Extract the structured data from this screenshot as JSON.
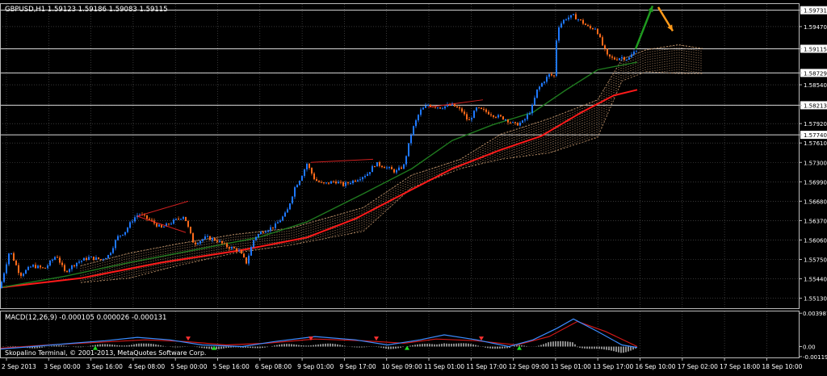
{
  "header": {
    "symbol_info": "GBPUSD,H1  1.59123 1.59186 1.59083 1.59115",
    "macd_info": "MACD(12,26,9) -0.000105 0.000026 -0.000131",
    "copyright": "Skopalino Terminal, © 2001-2013, MetaQuotes Software Corp."
  },
  "colors": {
    "background": "#000000",
    "grid": "#5a5a5a",
    "bull_candle": "#1e78ff",
    "bear_candle": "#ff6a1a",
    "ma_fast": "#1f7a1f",
    "ma_slow": "#ff1a1a",
    "cloud": "#c89a70",
    "macd_line": "#3c8cff",
    "signal_line": "#d01818",
    "histogram": "#c8c8c8",
    "text": "#ffffff"
  },
  "chart_data": [
    {
      "type": "candlestick",
      "title": "GBPUSD,H1",
      "ohlc_last": {
        "open": 1.59123,
        "high": 1.59186,
        "low": 1.59083,
        "close": 1.59115
      },
      "ylim": [
        1.5497,
        1.5983
      ],
      "y_ticks": [
        "1.59731",
        "1.59470",
        "1.59115",
        "1.58729",
        "1.58540",
        "1.58213",
        "1.57920",
        "1.57740",
        "1.57610",
        "1.57300",
        "1.56990",
        "1.56680",
        "1.56370",
        "1.56060",
        "1.55750",
        "1.55440",
        "1.55130"
      ],
      "y_tick_values": [
        1.59731,
        1.5947,
        1.59115,
        1.58729,
        1.5854,
        1.58213,
        1.5792,
        1.5774,
        1.5761,
        1.573,
        1.5699,
        1.5668,
        1.5637,
        1.5606,
        1.5575,
        1.5544,
        1.5513
      ],
      "highlighted_levels": [
        1.59731,
        1.59115,
        1.58729,
        1.58213,
        1.5774
      ],
      "x_ticks": [
        "2 Sep 2013",
        "3 Sep 00:00",
        "3 Sep 16:00",
        "4 Sep 08:00",
        "5 Sep 00:00",
        "5 Sep 16:00",
        "6 Sep 08:00",
        "9 Sep 01:00",
        "9 Sep 17:00",
        "10 Sep 09:00",
        "11 Sep 01:00",
        "11 Sep 17:00",
        "12 Sep 09:00",
        "13 Sep 01:00",
        "13 Sep 17:00",
        "16 Sep 10:00",
        "17 Sep 02:00",
        "17 Sep 18:00",
        "18 Sep 10:00"
      ],
      "price_path": [
        [
          0,
          1.5529
        ],
        [
          12,
          1.559
        ],
        [
          25,
          1.555
        ],
        [
          40,
          1.5565
        ],
        [
          55,
          1.556
        ],
        [
          70,
          1.5582
        ],
        [
          80,
          1.5555
        ],
        [
          95,
          1.557
        ],
        [
          110,
          1.5578
        ],
        [
          125,
          1.5575
        ],
        [
          135,
          1.5582
        ],
        [
          145,
          1.561
        ],
        [
          155,
          1.562
        ],
        [
          165,
          1.564
        ],
        [
          172,
          1.5648
        ],
        [
          185,
          1.5638
        ],
        [
          200,
          1.5625
        ],
        [
          215,
          1.5636
        ],
        [
          228,
          1.5645
        ],
        [
          235,
          1.5618
        ],
        [
          240,
          1.56
        ],
        [
          255,
          1.561
        ],
        [
          268,
          1.5606
        ],
        [
          280,
          1.5596
        ],
        [
          295,
          1.559
        ],
        [
          305,
          1.557
        ],
        [
          315,
          1.561
        ],
        [
          325,
          1.562
        ],
        [
          340,
          1.5628
        ],
        [
          355,
          1.565
        ],
        [
          365,
          1.569
        ],
        [
          372,
          1.5705
        ],
        [
          380,
          1.5728
        ],
        [
          390,
          1.5702
        ],
        [
          400,
          1.5695
        ],
        [
          415,
          1.57
        ],
        [
          425,
          1.5694
        ],
        [
          440,
          1.5702
        ],
        [
          455,
          1.5712
        ],
        [
          465,
          1.5728
        ],
        [
          475,
          1.5724
        ],
        [
          490,
          1.5715
        ],
        [
          500,
          1.5725
        ],
        [
          510,
          1.578
        ],
        [
          520,
          1.5812
        ],
        [
          530,
          1.5822
        ],
        [
          545,
          1.5818
        ],
        [
          560,
          1.5822
        ],
        [
          572,
          1.5812
        ],
        [
          580,
          1.5795
        ],
        [
          590,
          1.5816
        ],
        [
          600,
          1.5812
        ],
        [
          612,
          1.5805
        ],
        [
          625,
          1.58
        ],
        [
          638,
          1.579
        ],
        [
          648,
          1.5795
        ],
        [
          658,
          1.5815
        ],
        [
          665,
          1.5845
        ],
        [
          672,
          1.5858
        ],
        [
          680,
          1.587
        ],
        [
          686,
          1.5868
        ],
        [
          690,
          1.5945
        ],
        [
          700,
          1.596
        ],
        [
          710,
          1.5964
        ],
        [
          720,
          1.5955
        ],
        [
          730,
          1.5944
        ],
        [
          738,
          1.5945
        ],
        [
          745,
          1.592
        ],
        [
          752,
          1.59
        ],
        [
          760,
          1.5895
        ],
        [
          770,
          1.5898
        ],
        [
          778,
          1.5895
        ],
        [
          784,
          1.5905
        ],
        [
          789,
          1.59115
        ]
      ],
      "ma_fast": [
        [
          0,
          1.553
        ],
        [
          80,
          1.5548
        ],
        [
          160,
          1.557
        ],
        [
          240,
          1.559
        ],
        [
          320,
          1.561
        ],
        [
          380,
          1.5635
        ],
        [
          450,
          1.568
        ],
        [
          510,
          1.572
        ],
        [
          560,
          1.5765
        ],
        [
          610,
          1.579
        ],
        [
          660,
          1.581
        ],
        [
          700,
          1.5845
        ],
        [
          740,
          1.5878
        ],
        [
          789,
          1.589
        ]
      ],
      "ma_slow": [
        [
          0,
          1.553
        ],
        [
          100,
          1.5545
        ],
        [
          200,
          1.557
        ],
        [
          300,
          1.559
        ],
        [
          380,
          1.561
        ],
        [
          440,
          1.564
        ],
        [
          500,
          1.568
        ],
        [
          560,
          1.572
        ],
        [
          620,
          1.575
        ],
        [
          670,
          1.5772
        ],
        [
          720,
          1.581
        ],
        [
          760,
          1.5837
        ],
        [
          789,
          1.5846
        ]
      ],
      "cloud_top": [
        [
          100,
          1.5565
        ],
        [
          160,
          1.5585
        ],
        [
          220,
          1.56
        ],
        [
          290,
          1.5615
        ],
        [
          360,
          1.5625
        ],
        [
          450,
          1.5658
        ],
        [
          510,
          1.571
        ],
        [
          570,
          1.5735
        ],
        [
          620,
          1.5775
        ],
        [
          680,
          1.58
        ],
        [
          740,
          1.583
        ],
        [
          770,
          1.5895
        ],
        [
          800,
          1.591
        ],
        [
          840,
          1.5918
        ],
        [
          870,
          1.5912
        ]
      ],
      "cloud_bottom": [
        [
          100,
          1.5538
        ],
        [
          160,
          1.5545
        ],
        [
          220,
          1.5565
        ],
        [
          290,
          1.5585
        ],
        [
          360,
          1.5598
        ],
        [
          450,
          1.562
        ],
        [
          510,
          1.569
        ],
        [
          570,
          1.572
        ],
        [
          620,
          1.5735
        ],
        [
          680,
          1.5745
        ],
        [
          740,
          1.577
        ],
        [
          770,
          1.586
        ],
        [
          800,
          1.5875
        ],
        [
          840,
          1.5872
        ],
        [
          870,
          1.5872
        ]
      ],
      "projection_arrows": [
        {
          "color": "#1f9a1f",
          "from": [
            787,
            1.5911
          ],
          "to": [
            808,
            1.598
          ]
        },
        {
          "color": "#ff9a1a",
          "from": [
            815,
            1.5978
          ],
          "to": [
            833,
            1.594
          ]
        }
      ],
      "trend_lines": [
        {
          "from": [
            170,
            1.5644
          ],
          "to": [
            233,
            1.5668
          ]
        },
        {
          "from": [
            170,
            1.5644
          ],
          "to": [
            230,
            1.5618
          ]
        },
        {
          "from": [
            385,
            1.573
          ],
          "to": [
            462,
            1.5735
          ]
        },
        {
          "from": [
            530,
            1.5818
          ],
          "to": [
            598,
            1.583
          ]
        }
      ]
    },
    {
      "type": "macd",
      "title": "MACD(12,26,9)",
      "values": {
        "macd": -0.000105,
        "signal": 2.6e-05,
        "histogram": -0.000131
      },
      "y_ticks": [
        "0.003987",
        "0.00",
        "-0.001195"
      ],
      "y_tick_values": [
        0.003987,
        0.0,
        -0.001195
      ],
      "ylim": [
        -0.0013,
        0.0042
      ],
      "macd_line": [
        [
          0,
          -0.0003
        ],
        [
          40,
          0.0
        ],
        [
          90,
          0.0004
        ],
        [
          130,
          0.0007
        ],
        [
          170,
          0.0011
        ],
        [
          210,
          0.0008
        ],
        [
          250,
          0.0002
        ],
        [
          300,
          0.0
        ],
        [
          340,
          0.0006
        ],
        [
          390,
          0.0012
        ],
        [
          440,
          0.0008
        ],
        [
          480,
          0.0002
        ],
        [
          520,
          0.0008
        ],
        [
          550,
          0.0014
        ],
        [
          590,
          0.0008
        ],
        [
          630,
          0.0
        ],
        [
          660,
          0.0008
        ],
        [
          690,
          0.0022
        ],
        [
          710,
          0.0033
        ],
        [
          740,
          0.0018
        ],
        [
          770,
          0.0002
        ],
        [
          789,
          -0.0001
        ]
      ],
      "signal_line": [
        [
          0,
          -0.0002
        ],
        [
          60,
          0.0002
        ],
        [
          120,
          0.0005
        ],
        [
          180,
          0.0008
        ],
        [
          230,
          0.0006
        ],
        [
          280,
          0.0002
        ],
        [
          330,
          0.0004
        ],
        [
          390,
          0.0009
        ],
        [
          450,
          0.0007
        ],
        [
          500,
          0.0004
        ],
        [
          540,
          0.0009
        ],
        [
          590,
          0.0007
        ],
        [
          640,
          0.0002
        ],
        [
          680,
          0.0012
        ],
        [
          715,
          0.003
        ],
        [
          750,
          0.0018
        ],
        [
          789,
          0.0
        ]
      ],
      "arrows": [
        {
          "x": 118,
          "dir": "up",
          "color": "#22dd22"
        },
        {
          "x": 233,
          "dir": "down",
          "color": "#ff3030"
        },
        {
          "x": 265,
          "dir": "up",
          "color": "#22dd22"
        },
        {
          "x": 385,
          "dir": "down",
          "color": "#ff3030"
        },
        {
          "x": 466,
          "dir": "down",
          "color": "#ff3030"
        },
        {
          "x": 504,
          "dir": "up",
          "color": "#22dd22"
        },
        {
          "x": 596,
          "dir": "down",
          "color": "#ff3030"
        },
        {
          "x": 643,
          "dir": "up",
          "color": "#22dd22"
        }
      ]
    }
  ]
}
